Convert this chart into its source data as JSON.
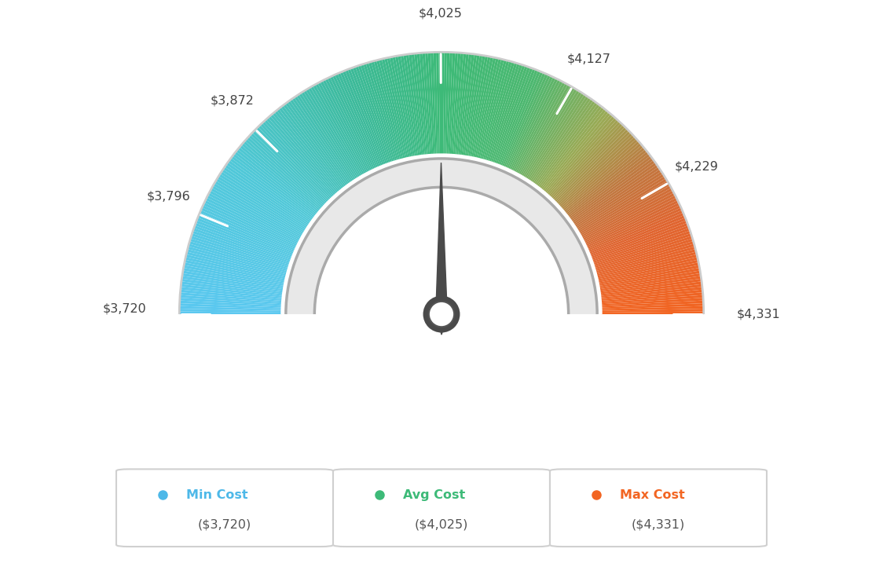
{
  "min_val": 3720,
  "avg_val": 4025,
  "max_val": 4331,
  "tick_labels": [
    "$3,720",
    "$3,796",
    "$3,872",
    "$4,025",
    "$4,127",
    "$4,229",
    "$4,331"
  ],
  "tick_values": [
    3720,
    3796,
    3872,
    4025,
    4127,
    4229,
    4331
  ],
  "legend_labels": [
    "Min Cost",
    "Avg Cost",
    "Max Cost"
  ],
  "legend_values": [
    "($3,720)",
    "($4,025)",
    "($4,331)"
  ],
  "legend_colors": [
    "#4db8e8",
    "#3dba78",
    "#f26522"
  ],
  "background_color": "#ffffff",
  "colors_gradient": [
    [
      0.0,
      "#5bc8f0"
    ],
    [
      0.2,
      "#50c8d8"
    ],
    [
      0.38,
      "#3dba9a"
    ],
    [
      0.5,
      "#3dba78"
    ],
    [
      0.62,
      "#4db870"
    ],
    [
      0.72,
      "#9aaa55"
    ],
    [
      0.8,
      "#c07840"
    ],
    [
      0.88,
      "#e06530"
    ],
    [
      1.0,
      "#f26522"
    ]
  ]
}
